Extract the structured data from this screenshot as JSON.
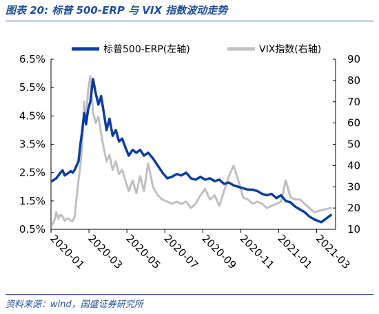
{
  "figure_title": "图表 20:  标普 500-ERP 与 VIX 指数波动走势",
  "source_note": "资料来源：wind，国盛证券研究所",
  "colors": {
    "erp": "#0b3d9e",
    "vix": "#bfbfbf",
    "accent": "#1f4e9c"
  },
  "chart_data": {
    "type": "line",
    "title": "",
    "legend_position": "top",
    "grid": false,
    "x_ticks": [
      "2020-01",
      "2020-03",
      "2020-05",
      "2020-07",
      "2020-09",
      "2020-11",
      "2021-01",
      "2021-03"
    ],
    "xlim": [
      "2020-01",
      "2021-03"
    ],
    "y_left": {
      "ticks": [
        "0.5%",
        "1.5%",
        "2.5%",
        "3.5%",
        "4.5%",
        "5.5%",
        "6.5%"
      ],
      "ylim": [
        0.5,
        6.5
      ]
    },
    "y_right": {
      "ticks": [
        "10",
        "20",
        "30",
        "40",
        "50",
        "60",
        "70",
        "80",
        "90"
      ],
      "ylim": [
        10,
        90
      ]
    },
    "series": [
      {
        "name": "标普500-ERP(左轴)",
        "axis": "left",
        "x": [
          "2020-01",
          "2020-01",
          "2020-01",
          "2020-01",
          "2020-01",
          "2020-01",
          "2020-01",
          "2020-01",
          "2020-01",
          "2020-02",
          "2020-02",
          "2020-02",
          "2020-02",
          "2020-02",
          "2020-02",
          "2020-02",
          "2020-02",
          "2020-02",
          "2020-02",
          "2020-03",
          "2020-03",
          "2020-03",
          "2020-03",
          "2020-03",
          "2020-03",
          "2020-03",
          "2020-04",
          "2020-04",
          "2020-04",
          "2020-04",
          "2020-04",
          "2020-04",
          "2020-05",
          "2020-05",
          "2020-05",
          "2020-05",
          "2020-05",
          "2020-06",
          "2020-06",
          "2020-06",
          "2020-06",
          "2020-07",
          "2020-07",
          "2020-07",
          "2020-07",
          "2020-08",
          "2020-08",
          "2020-08",
          "2020-08",
          "2020-09",
          "2020-09",
          "2020-09",
          "2020-09",
          "2020-10",
          "2020-10",
          "2020-10",
          "2020-10",
          "2020-11",
          "2020-11",
          "2020-11",
          "2020-11",
          "2020-12",
          "2020-12",
          "2020-12",
          "2020-12",
          "2021-01",
          "2021-01",
          "2021-01",
          "2021-01",
          "2021-02",
          "2021-02",
          "2021-02",
          "2021-02",
          "2021-03",
          "2021-03"
        ],
        "y": [
          2.2,
          2.25,
          2.3,
          2.4,
          2.5,
          2.58,
          2.4,
          2.45,
          2.5,
          2.55,
          2.5,
          2.6,
          2.75,
          2.9,
          3.5,
          4.0,
          4.6,
          4.2,
          4.7,
          5.0,
          5.8,
          5.3,
          4.9,
          5.2,
          4.6,
          4.0,
          4.4,
          3.8,
          4.0,
          3.6,
          3.7,
          3.4,
          3.1,
          3.3,
          3.2,
          3.3,
          3.1,
          3.2,
          3.0,
          2.75,
          2.5,
          2.3,
          2.35,
          2.45,
          2.4,
          2.5,
          2.3,
          2.25,
          2.35,
          2.25,
          2.3,
          2.2,
          2.25,
          2.1,
          2.15,
          2.05,
          2.0,
          1.95,
          1.9,
          1.9,
          1.85,
          1.75,
          1.7,
          1.75,
          1.6,
          1.7,
          1.5,
          1.45,
          1.3,
          1.2,
          1.1,
          0.95,
          0.85,
          0.75,
          1.0
        ]
      },
      {
        "name": "VIX指数(右轴)",
        "axis": "right",
        "x": [
          "2020-01",
          "2020-01",
          "2020-01",
          "2020-01",
          "2020-01",
          "2020-01",
          "2020-01",
          "2020-01",
          "2020-01",
          "2020-02",
          "2020-02",
          "2020-02",
          "2020-02",
          "2020-02",
          "2020-02",
          "2020-02",
          "2020-02",
          "2020-02",
          "2020-02",
          "2020-03",
          "2020-03",
          "2020-03",
          "2020-03",
          "2020-03",
          "2020-03",
          "2020-03",
          "2020-04",
          "2020-04",
          "2020-04",
          "2020-04",
          "2020-04",
          "2020-04",
          "2020-05",
          "2020-05",
          "2020-05",
          "2020-05",
          "2020-05",
          "2020-06",
          "2020-06",
          "2020-06",
          "2020-06",
          "2020-07",
          "2020-07",
          "2020-07",
          "2020-07",
          "2020-08",
          "2020-08",
          "2020-08",
          "2020-08",
          "2020-09",
          "2020-09",
          "2020-09",
          "2020-09",
          "2020-10",
          "2020-10",
          "2020-10",
          "2020-10",
          "2020-11",
          "2020-11",
          "2020-11",
          "2020-11",
          "2020-12",
          "2020-12",
          "2020-12",
          "2020-12",
          "2021-01",
          "2021-01",
          "2021-01",
          "2021-01",
          "2021-02",
          "2021-02",
          "2021-02",
          "2021-02",
          "2021-03",
          "2021-03"
        ],
        "y": [
          12,
          14,
          18,
          15,
          17,
          16,
          14,
          15,
          15,
          14,
          14,
          16,
          25,
          33,
          40,
          50,
          70,
          60,
          75,
          82,
          65,
          60,
          63,
          55,
          48,
          42,
          45,
          38,
          42,
          36,
          38,
          33,
          28,
          33,
          27,
          35,
          28,
          41,
          30,
          26,
          24,
          23,
          22,
          23,
          22,
          23,
          20,
          22,
          26,
          29,
          24,
          26,
          21,
          28,
          35,
          40,
          33,
          25,
          24,
          22,
          23,
          22,
          20,
          21,
          22,
          23,
          33,
          25,
          24,
          24,
          22,
          20,
          18,
          19,
          20
        ]
      }
    ]
  }
}
